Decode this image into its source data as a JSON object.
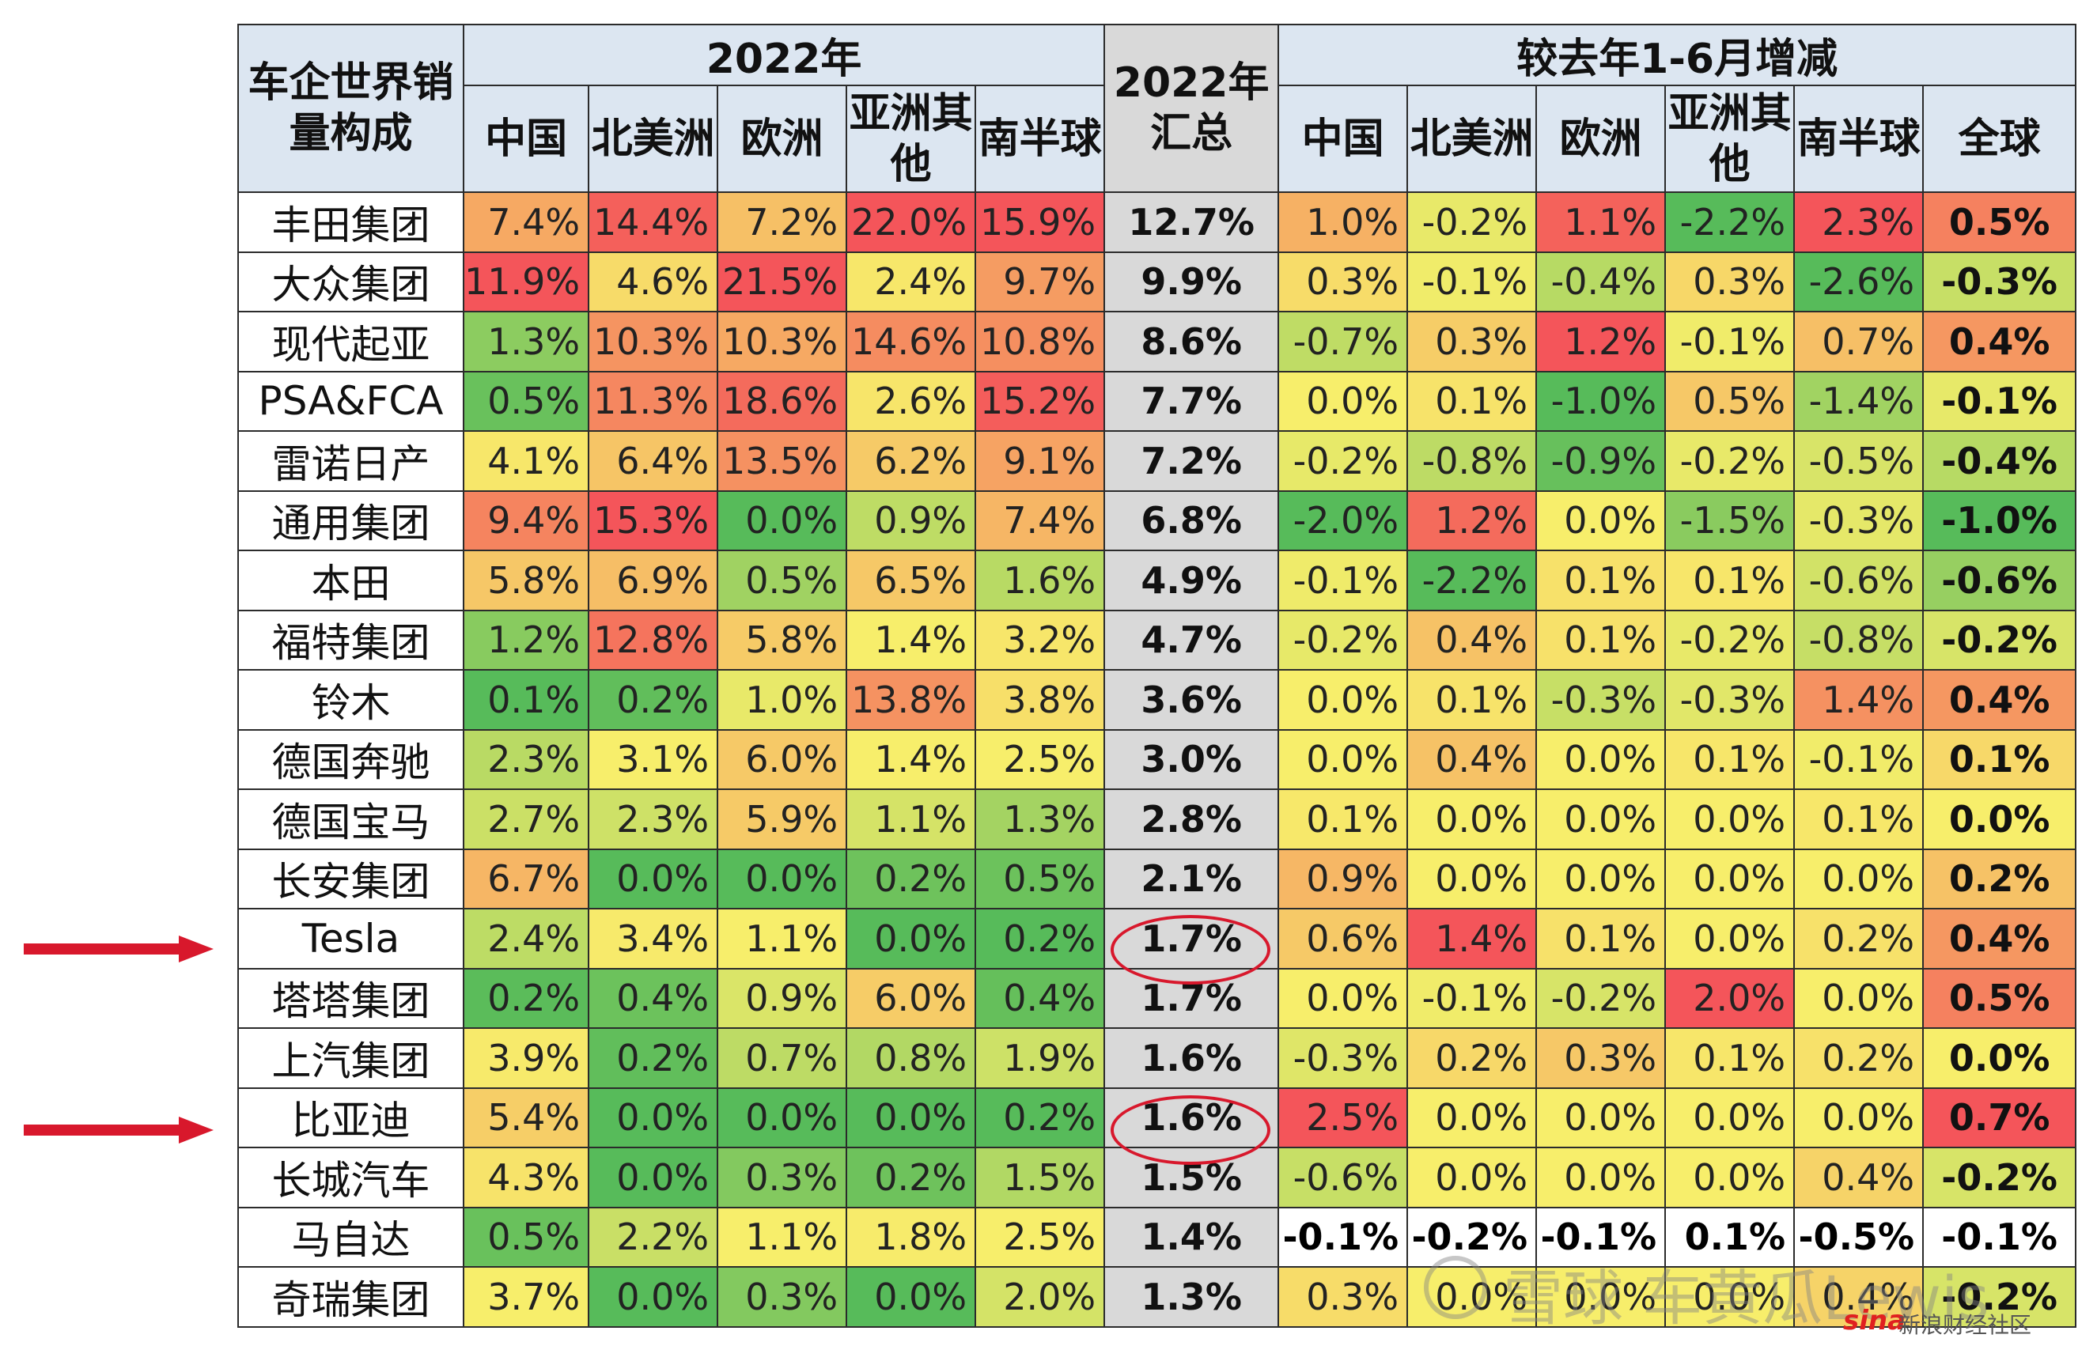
{
  "table": {
    "corner": "车企世界销量构成",
    "group_2022": "2022年",
    "group_total": "2022年汇总",
    "group_change": "较去年1-6月增减",
    "region_cols": [
      "中国",
      "北美洲",
      "欧洲",
      "亚洲其他",
      "南半球"
    ],
    "change_cols": [
      "中国",
      "北美洲",
      "欧洲",
      "亚洲其他",
      "南半球",
      "全球"
    ]
  },
  "chart_data": {
    "type": "table",
    "rows": [
      {
        "name": "丰田集团",
        "share": [
          "7.4%",
          "14.4%",
          "7.2%",
          "22.0%",
          "15.9%"
        ],
        "total": "12.7%",
        "change": [
          "1.0%",
          "-0.2%",
          "1.1%",
          "-2.2%",
          "2.3%",
          "0.5%"
        ]
      },
      {
        "name": "大众集团",
        "share": [
          "11.9%",
          "4.6%",
          "21.5%",
          "2.4%",
          "9.7%"
        ],
        "total": "9.9%",
        "change": [
          "0.3%",
          "-0.1%",
          "-0.4%",
          "0.3%",
          "-2.6%",
          "-0.3%"
        ]
      },
      {
        "name": "现代起亚",
        "share": [
          "1.3%",
          "10.3%",
          "10.3%",
          "14.6%",
          "10.8%"
        ],
        "total": "8.6%",
        "change": [
          "-0.7%",
          "0.3%",
          "1.2%",
          "-0.1%",
          "0.7%",
          "0.4%"
        ]
      },
      {
        "name": "PSA&FCA",
        "share": [
          "0.5%",
          "11.3%",
          "18.6%",
          "2.6%",
          "15.2%"
        ],
        "total": "7.7%",
        "change": [
          "0.0%",
          "0.1%",
          "-1.0%",
          "0.5%",
          "-1.4%",
          "-0.1%"
        ]
      },
      {
        "name": "雷诺日产",
        "share": [
          "4.1%",
          "6.4%",
          "13.5%",
          "6.2%",
          "9.1%"
        ],
        "total": "7.2%",
        "change": [
          "-0.2%",
          "-0.8%",
          "-0.9%",
          "-0.2%",
          "-0.5%",
          "-0.4%"
        ]
      },
      {
        "name": "通用集团",
        "share": [
          "9.4%",
          "15.3%",
          "0.0%",
          "0.9%",
          "7.4%"
        ],
        "total": "6.8%",
        "change": [
          "-2.0%",
          "1.2%",
          "0.0%",
          "-1.5%",
          "-0.3%",
          "-1.0%"
        ]
      },
      {
        "name": "本田",
        "share": [
          "5.8%",
          "6.9%",
          "0.5%",
          "6.5%",
          "1.6%"
        ],
        "total": "4.9%",
        "change": [
          "-0.1%",
          "-2.2%",
          "0.1%",
          "0.1%",
          "-0.6%",
          "-0.6%"
        ]
      },
      {
        "name": "福特集团",
        "share": [
          "1.2%",
          "12.8%",
          "5.8%",
          "1.4%",
          "3.2%"
        ],
        "total": "4.7%",
        "change": [
          "-0.2%",
          "0.4%",
          "0.1%",
          "-0.2%",
          "-0.8%",
          "-0.2%"
        ]
      },
      {
        "name": "铃木",
        "share": [
          "0.1%",
          "0.2%",
          "1.0%",
          "13.8%",
          "3.8%"
        ],
        "total": "3.6%",
        "change": [
          "0.0%",
          "0.1%",
          "-0.3%",
          "-0.3%",
          "1.4%",
          "0.4%"
        ]
      },
      {
        "name": "德国奔驰",
        "share": [
          "2.3%",
          "3.1%",
          "6.0%",
          "1.4%",
          "2.5%"
        ],
        "total": "3.0%",
        "change": [
          "0.0%",
          "0.4%",
          "0.0%",
          "0.1%",
          "-0.1%",
          "0.1%"
        ]
      },
      {
        "name": "德国宝马",
        "share": [
          "2.7%",
          "2.3%",
          "5.9%",
          "1.1%",
          "1.3%"
        ],
        "total": "2.8%",
        "change": [
          "0.1%",
          "0.0%",
          "0.0%",
          "0.0%",
          "0.1%",
          "0.0%"
        ]
      },
      {
        "name": "长安集团",
        "share": [
          "6.7%",
          "0.0%",
          "0.0%",
          "0.2%",
          "0.5%"
        ],
        "total": "2.1%",
        "change": [
          "0.9%",
          "0.0%",
          "0.0%",
          "0.0%",
          "0.0%",
          "0.2%"
        ]
      },
      {
        "name": "Tesla",
        "share": [
          "2.4%",
          "3.4%",
          "1.1%",
          "0.0%",
          "0.2%"
        ],
        "total": "1.7%",
        "change": [
          "0.6%",
          "1.4%",
          "0.1%",
          "0.0%",
          "0.2%",
          "0.4%"
        ]
      },
      {
        "name": "塔塔集团",
        "share": [
          "0.2%",
          "0.4%",
          "0.9%",
          "6.0%",
          "0.4%"
        ],
        "total": "1.7%",
        "change": [
          "0.0%",
          "-0.1%",
          "-0.2%",
          "2.0%",
          "0.0%",
          "0.5%"
        ]
      },
      {
        "name": "上汽集团",
        "share": [
          "3.9%",
          "0.2%",
          "0.7%",
          "0.8%",
          "1.9%"
        ],
        "total": "1.6%",
        "change": [
          "-0.3%",
          "0.2%",
          "0.3%",
          "0.1%",
          "0.2%",
          "0.0%"
        ]
      },
      {
        "name": "比亚迪",
        "share": [
          "5.4%",
          "0.0%",
          "0.0%",
          "0.0%",
          "0.2%"
        ],
        "total": "1.6%",
        "change": [
          "2.5%",
          "0.0%",
          "0.0%",
          "0.0%",
          "0.0%",
          "0.7%"
        ]
      },
      {
        "name": "长城汽车",
        "share": [
          "4.3%",
          "0.0%",
          "0.3%",
          "0.2%",
          "1.5%"
        ],
        "total": "1.5%",
        "change": [
          "-0.6%",
          "0.0%",
          "0.0%",
          "0.0%",
          "0.4%",
          "-0.2%"
        ]
      },
      {
        "name": "马自达",
        "share": [
          "0.5%",
          "2.2%",
          "1.1%",
          "1.8%",
          "2.5%"
        ],
        "total": "1.4%",
        "change": [
          "-0.1%",
          "-0.2%",
          "-0.1%",
          "0.1%",
          "-0.5%",
          "-0.1%"
        ],
        "change_uncolored": true
      },
      {
        "name": "奇瑞集团",
        "share": [
          "3.7%",
          "0.0%",
          "0.3%",
          "0.0%",
          "2.0%"
        ],
        "total": "1.3%",
        "change": [
          "0.3%",
          "0.0%",
          "0.0%",
          "0.0%",
          "0.4%",
          "-0.2%"
        ]
      }
    ],
    "highlighted_rows": [
      "Tesla",
      "比亚迪"
    ]
  },
  "colors": {
    "header_bg": "#dce6f1",
    "total_bg": "#d9d9d9",
    "arrow": "#d8182c",
    "circle": "#d8182c",
    "scale": [
      "#57bb5a",
      "#f7ee6b",
      "#f4555a"
    ]
  },
  "watermark": {
    "text": "雪球 车黄瓜Lewis",
    "sina": "sina",
    "sub": "新浪财经社区"
  }
}
